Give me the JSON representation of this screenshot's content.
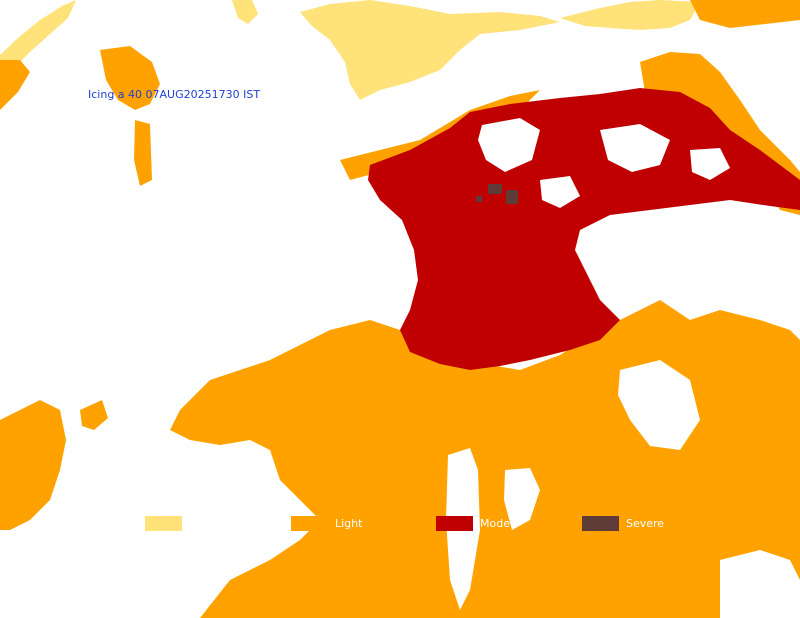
{
  "map": {
    "title": "Icing a    40    07AUG20251730 IST",
    "colors": {
      "background": "#ffffff",
      "trace": "#ffe27a",
      "light": "#ffa200",
      "moderate": "#c00000",
      "severe": "#5e3b36"
    }
  },
  "legend": {
    "items": [
      {
        "key": "trace",
        "label": "",
        "color": "#ffe27a"
      },
      {
        "key": "light",
        "label": "Light",
        "color": "#ffa200"
      },
      {
        "key": "moderate",
        "label": "Mode",
        "color": "#c00000"
      },
      {
        "key": "severe",
        "label": "Severe",
        "color": "#5e3b36"
      }
    ]
  }
}
